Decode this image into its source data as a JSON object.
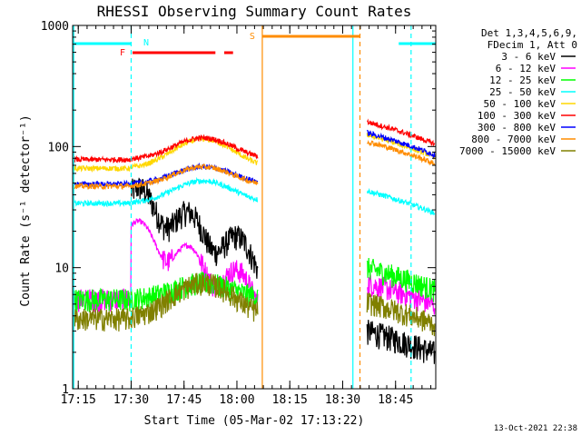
{
  "chart_data": {
    "type": "line",
    "title": "RHESSI Observing Summary Count Rates",
    "xlabel": "Start Time (05-Mar-02 17:13:22)",
    "ylabel": "Count Rate (s⁻¹ detector⁻¹)",
    "y_scale": "log",
    "ylim": [
      1,
      1000
    ],
    "xlim_minutes": [
      0,
      103
    ],
    "x_ticks": [
      {
        "label": "17:15",
        "minute": 1.6
      },
      {
        "label": "17:30",
        "minute": 16.6
      },
      {
        "label": "17:45",
        "minute": 31.6
      },
      {
        "label": "18:00",
        "minute": 46.6
      },
      {
        "label": "18:15",
        "minute": 61.6
      },
      {
        "label": "18:30",
        "minute": 76.6
      },
      {
        "label": "18:45",
        "minute": 91.6
      }
    ],
    "y_ticks": [
      {
        "label": "1",
        "value": 1
      },
      {
        "label": "10",
        "value": 10
      },
      {
        "label": "100",
        "value": 100
      },
      {
        "label": "1000",
        "value": 1000
      }
    ],
    "legend_header": [
      "Det 1,3,4,5,6,9,",
      "FDecim 1, Att 0"
    ],
    "legend_position": "right",
    "timestamp": "13-Oct-2021 22:38",
    "series": [
      {
        "name": "3 - 6 keV",
        "color": "#000000",
        "profile": "flare_drop",
        "pre": 0.0,
        "peak": 38,
        "post_start": 3,
        "noisy": true
      },
      {
        "name": "6 - 12 keV",
        "color": "#ff00ff",
        "profile": "flare_drop",
        "pre": 5.5,
        "peak": 20,
        "post_start": 7.5
      },
      {
        "name": "12 - 25 keV",
        "color": "#00ff00",
        "profile": "bump",
        "pre": 5.5,
        "peak": 7.5,
        "post_start": 10
      },
      {
        "name": "25 - 50 keV",
        "color": "#00ffff",
        "profile": "bump",
        "pre": 34,
        "peak": 52,
        "post_start": 43
      },
      {
        "name": "50 - 100 keV",
        "color": "#ffd700",
        "profile": "bump",
        "pre": 66,
        "peak": 115,
        "post_start": 125
      },
      {
        "name": "100 - 300 keV",
        "color": "#ff0000",
        "profile": "bump",
        "pre": 78,
        "peak": 118,
        "post_start": 160
      },
      {
        "name": "300 - 800 keV",
        "color": "#0000ff",
        "profile": "bump",
        "pre": 49,
        "peak": 68,
        "post_start": 130
      },
      {
        "name": "800 - 7000 keV",
        "color": "#ff8c00",
        "profile": "bump",
        "pre": 47,
        "peak": 68,
        "post_start": 110
      },
      {
        "name": "7000 - 15000 keV",
        "color": "#808000",
        "profile": "bump",
        "pre": 3.8,
        "peak": 7.5,
        "post_start": 5.2
      }
    ],
    "observing_flags": [
      {
        "label": "N",
        "type": "night",
        "intervals_minutes": [
          [
            0,
            16.6
          ],
          [
            92.5,
            103
          ]
        ],
        "color": "#00ffff"
      },
      {
        "label": "F",
        "type": "flare",
        "intervals_minutes": [
          [
            17,
            40.5
          ],
          [
            43,
            45.5
          ]
        ],
        "color": "#ff0000"
      },
      {
        "label": "S",
        "type": "saa",
        "intervals_minutes": [
          [
            53.8,
            81.5
          ]
        ],
        "color": "#ff8c00"
      }
    ],
    "vertical_markers": [
      {
        "minute": 0.3,
        "color": "#00ffff",
        "style": "solid"
      },
      {
        "minute": 16.6,
        "color": "#00ffff",
        "style": "dashed"
      },
      {
        "minute": 53.8,
        "color": "#ff8c00",
        "style": "solid"
      },
      {
        "minute": 81.5,
        "color": "#ff8c00",
        "style": "dashed"
      },
      {
        "minute": 79.5,
        "color": "#00ffff",
        "style": "solid"
      },
      {
        "minute": 96.0,
        "color": "#00ffff",
        "style": "dashed"
      }
    ],
    "data_gap_minutes": [
      52.5,
      83.5
    ],
    "grid": false
  }
}
